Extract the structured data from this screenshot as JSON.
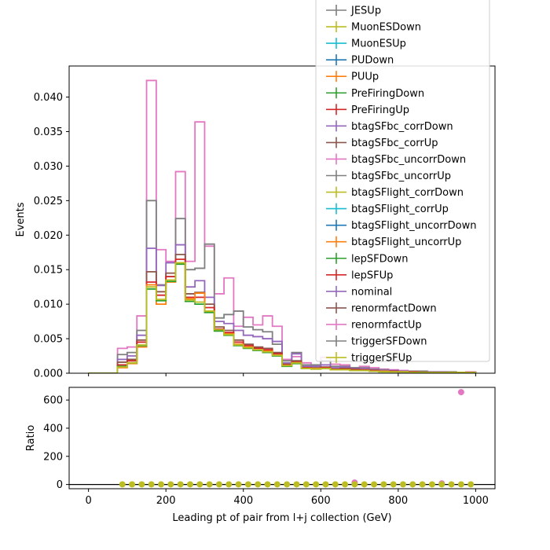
{
  "chart_data": [
    {
      "type": "line",
      "ylabel": "Events",
      "xlim": [
        -50,
        1050
      ],
      "ylim": [
        0,
        0.0445
      ],
      "yticks": [
        0.0,
        0.005,
        0.01,
        0.015,
        0.02,
        0.025,
        0.03,
        0.035,
        0.04
      ],
      "ytick_labels": [
        "0.000",
        "0.005",
        "0.010",
        "0.015",
        "0.020",
        "0.025",
        "0.030",
        "0.035",
        "0.040"
      ],
      "bin_edges": [
        0,
        25,
        50,
        75,
        100,
        125,
        150,
        175,
        200,
        225,
        250,
        275,
        300,
        325,
        350,
        375,
        400,
        425,
        450,
        475,
        500,
        525,
        550,
        575,
        600,
        625,
        650,
        675,
        700,
        725,
        750,
        775,
        800,
        825,
        850,
        875,
        900,
        925,
        950,
        975,
        1000
      ],
      "legend": {
        "placement": "top-right",
        "entries": [
          {
            "name": "JESUp",
            "color": "#7f7f7f"
          },
          {
            "name": "MuonESDown",
            "color": "#bcbd22"
          },
          {
            "name": "MuonESUp",
            "color": "#17becf"
          },
          {
            "name": "PUDown",
            "color": "#1f77b4"
          },
          {
            "name": "PUUp",
            "color": "#ff7f0e"
          },
          {
            "name": "PreFiringDown",
            "color": "#2ca02c"
          },
          {
            "name": "PreFiringUp",
            "color": "#d62728"
          },
          {
            "name": "btagSFbc_corrDown",
            "color": "#9467bd"
          },
          {
            "name": "btagSFbc_corrUp",
            "color": "#8c564b"
          },
          {
            "name": "btagSFbc_uncorrDown",
            "color": "#e377c2"
          },
          {
            "name": "btagSFbc_uncorrUp",
            "color": "#7f7f7f"
          },
          {
            "name": "btagSFlight_corrDown",
            "color": "#bcbd22"
          },
          {
            "name": "btagSFlight_corrUp",
            "color": "#17becf"
          },
          {
            "name": "btagSFlight_uncorrDown",
            "color": "#1f77b4"
          },
          {
            "name": "btagSFlight_uncorrUp",
            "color": "#ff7f0e"
          },
          {
            "name": "lepSFDown",
            "color": "#2ca02c"
          },
          {
            "name": "lepSFUp",
            "color": "#d62728"
          },
          {
            "name": "nominal",
            "color": "#9467bd"
          },
          {
            "name": "renormfactDown",
            "color": "#8c564b"
          },
          {
            "name": "renormfactUp",
            "color": "#e377c2"
          },
          {
            "name": "triggerSFDown",
            "color": "#7f7f7f"
          },
          {
            "name": "triggerSFUp",
            "color": "#bcbd22"
          }
        ]
      },
      "series": [
        {
          "name": "renormfactUp",
          "color": "#e377c2",
          "values": [
            0,
            0,
            0,
            0.0036,
            0.0038,
            0.0083,
            0.0424,
            0.0179,
            0.0162,
            0.0292,
            0.0162,
            0.0364,
            0.0184,
            0.0115,
            0.0138,
            0.0068,
            0.0081,
            0.007,
            0.0083,
            0.0068,
            0.002,
            0.0024,
            0.0015,
            0.0012,
            0.0023,
            0.0013,
            0.0012,
            0.0008,
            0.001,
            0.0008,
            0.0006,
            0.0005,
            0.0004,
            0.0003,
            0.0003,
            0.0002,
            0.0002,
            0.0002,
            0.0001,
            0.0002
          ]
        },
        {
          "name": "triggerSFDown",
          "color": "#7f7f7f",
          "values": [
            0,
            0,
            0,
            0.0027,
            0.003,
            0.0062,
            0.025,
            0.0128,
            0.014,
            0.0224,
            0.015,
            0.0152,
            0.0187,
            0.008,
            0.0085,
            0.009,
            0.0067,
            0.0063,
            0.006,
            0.0042,
            0.0018,
            0.003,
            0.0012,
            0.0012,
            0.0018,
            0.001,
            0.001,
            0.0008,
            0.0008,
            0.0006,
            0.0005,
            0.0004,
            0.0003,
            0.0003,
            0.0003,
            0.0002,
            0.0002,
            0.0002,
            0.0001,
            0.0001
          ]
        },
        {
          "name": "nominal",
          "color": "#9467bd",
          "values": [
            0,
            0,
            0,
            0.002,
            0.0025,
            0.0055,
            0.0181,
            0.0127,
            0.016,
            0.0186,
            0.0125,
            0.0134,
            0.011,
            0.0075,
            0.0072,
            0.0062,
            0.0055,
            0.0053,
            0.005,
            0.0046,
            0.0015,
            0.0028,
            0.001,
            0.001,
            0.0012,
            0.0008,
            0.0009,
            0.0007,
            0.0007,
            0.0005,
            0.0004,
            0.0004,
            0.0003,
            0.0002,
            0.0002,
            0.0002,
            0.0002,
            0.0001,
            0.0001,
            0.0001
          ]
        },
        {
          "name": "renormfactDown",
          "color": "#8c564b",
          "values": [
            0,
            0,
            0,
            0.0016,
            0.002,
            0.0048,
            0.0147,
            0.0118,
            0.0145,
            0.0172,
            0.0115,
            0.0117,
            0.01,
            0.0067,
            0.0062,
            0.0048,
            0.0042,
            0.0038,
            0.0036,
            0.003,
            0.0013,
            0.0018,
            0.0008,
            0.0008,
            0.0009,
            0.0006,
            0.0007,
            0.0006,
            0.0005,
            0.0004,
            0.0003,
            0.0003,
            0.0002,
            0.0002,
            0.0002,
            0.0001,
            0.0001,
            0.0001,
            0.0001,
            0.0001
          ]
        },
        {
          "name": "PreFiringUp",
          "color": "#d62728",
          "values": [
            0,
            0,
            0,
            0.0012,
            0.0018,
            0.0045,
            0.0132,
            0.0113,
            0.014,
            0.0165,
            0.011,
            0.011,
            0.0095,
            0.0064,
            0.0059,
            0.0045,
            0.004,
            0.0036,
            0.0034,
            0.0028,
            0.0012,
            0.0016,
            0.0008,
            0.0007,
            0.0008,
            0.0006,
            0.0006,
            0.0005,
            0.0005,
            0.0004,
            0.0003,
            0.0003,
            0.0002,
            0.0002,
            0.0001,
            0.0001,
            0.0001,
            0.0001,
            0.0001,
            0.0001
          ]
        },
        {
          "name": "PUUp",
          "color": "#ff7f0e",
          "values": [
            0,
            0,
            0,
            0.0008,
            0.0014,
            0.0038,
            0.0128,
            0.01,
            0.0132,
            0.016,
            0.0108,
            0.0116,
            0.009,
            0.0062,
            0.0057,
            0.0042,
            0.0038,
            0.0034,
            0.0032,
            0.0026,
            0.0011,
            0.0015,
            0.0007,
            0.0007,
            0.0007,
            0.0005,
            0.0005,
            0.0004,
            0.0004,
            0.0003,
            0.0003,
            0.0002,
            0.0002,
            0.0001,
            0.0001,
            0.0001,
            0.0001,
            0.0001,
            0.0001,
            0.0001
          ]
        },
        {
          "name": "lepSFDown",
          "color": "#2ca02c",
          "values": [
            0,
            0,
            0,
            0.001,
            0.0015,
            0.004,
            0.0122,
            0.0105,
            0.0133,
            0.0158,
            0.0104,
            0.01,
            0.0088,
            0.0061,
            0.0055,
            0.004,
            0.0036,
            0.0033,
            0.003,
            0.0025,
            0.001,
            0.0014,
            0.0007,
            0.0006,
            0.0007,
            0.0005,
            0.0005,
            0.0004,
            0.0004,
            0.0003,
            0.0002,
            0.0002,
            0.0002,
            0.0001,
            0.0001,
            0.0001,
            0.0001,
            0.0001,
            0.0001,
            0.0001
          ]
        },
        {
          "name": "triggerSFUp",
          "color": "#bcbd22",
          "values": [
            0,
            0,
            0,
            0.0009,
            0.0015,
            0.0041,
            0.0125,
            0.0107,
            0.0135,
            0.016,
            0.0106,
            0.0103,
            0.009,
            0.0063,
            0.0056,
            0.0041,
            0.0037,
            0.0034,
            0.0031,
            0.0026,
            0.0011,
            0.0015,
            0.0007,
            0.0006,
            0.0007,
            0.0005,
            0.0005,
            0.0004,
            0.0004,
            0.0003,
            0.0002,
            0.0002,
            0.0002,
            0.0001,
            0.0001,
            0.0001,
            0.0001,
            0.0001,
            0.0001,
            0.0001
          ]
        }
      ]
    },
    {
      "type": "scatter",
      "xlabel": "Leading pt of pair from l+j collection (GeV)",
      "ylabel": "Ratio",
      "xlim": [
        -50,
        1050
      ],
      "ylim": [
        -30,
        690
      ],
      "xticks": [
        0,
        200,
        400,
        600,
        800,
        1000
      ],
      "xtick_labels": [
        "0",
        "200",
        "400",
        "600",
        "800",
        "1000"
      ],
      "yticks": [
        0,
        200,
        400,
        600
      ],
      "ytick_labels": [
        "0",
        "200",
        "400",
        "600"
      ],
      "reference_line": 0,
      "x": [
        87.5,
        112.5,
        137.5,
        162.5,
        187.5,
        212.5,
        237.5,
        262.5,
        287.5,
        312.5,
        337.5,
        362.5,
        387.5,
        412.5,
        437.5,
        462.5,
        487.5,
        512.5,
        537.5,
        562.5,
        587.5,
        612.5,
        637.5,
        662.5,
        687.5,
        712.5,
        737.5,
        762.5,
        787.5,
        812.5,
        837.5,
        862.5,
        887.5,
        912.5,
        937.5,
        962.5,
        987.5
      ],
      "series": [
        {
          "name": "renormfactUp",
          "color": "#e377c2",
          "points": [
            [
              687.5,
              14
            ],
            [
              912.5,
              8
            ],
            [
              962.5,
              656
            ]
          ]
        },
        {
          "name": "triggerSFUp",
          "color": "#bcbd22",
          "values": [
            1,
            1,
            1,
            1,
            1,
            1,
            1,
            1,
            1,
            1,
            1,
            1,
            1,
            1,
            1,
            1,
            1,
            1,
            1,
            1,
            1,
            1,
            1,
            1,
            1,
            1,
            1,
            1,
            1,
            1,
            1,
            1,
            1,
            1,
            1,
            1,
            1
          ]
        }
      ]
    }
  ]
}
